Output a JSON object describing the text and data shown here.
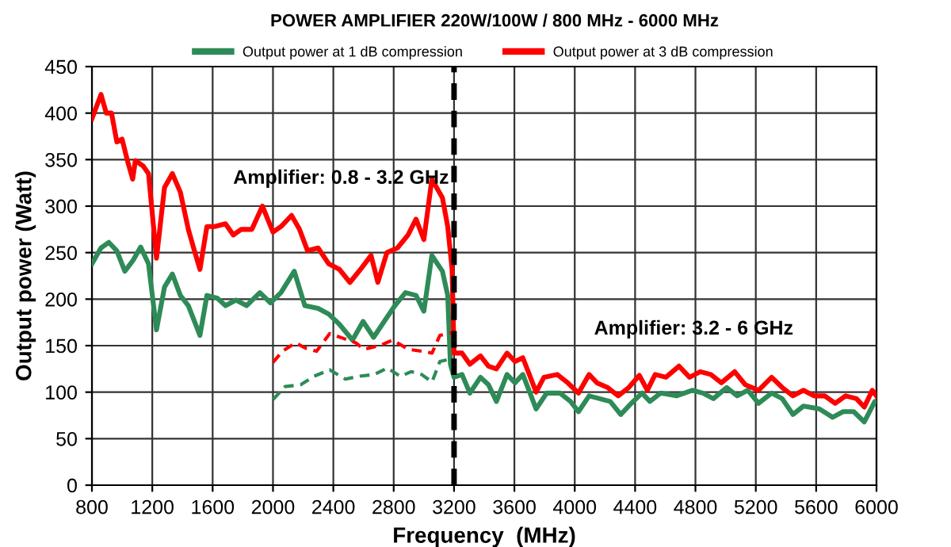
{
  "chart_data": {
    "type": "line",
    "title": "POWER AMPLIFIER 220W/100W / 800 MHz - 6000 MHz",
    "xlabel": "Frequency  (MHz)",
    "ylabel": "Output power (Watt)",
    "xlim": [
      800,
      6000
    ],
    "xticks": [
      800,
      1200,
      1600,
      2000,
      2400,
      2800,
      3200,
      3600,
      4000,
      4400,
      4800,
      5200,
      5600,
      6000
    ],
    "ylim": [
      0,
      450
    ],
    "yticks": [
      0,
      50,
      100,
      150,
      200,
      250,
      300,
      350,
      400,
      450
    ],
    "grid": true,
    "legend": "top",
    "marker": "none",
    "annotations": [
      "Amplifier: 0.8 - 3.2 GHz",
      "Amplifier: 3.2 - 6 GHz"
    ],
    "ref_lines": [
      {
        "axis": "x",
        "value": 3200,
        "label": null,
        "color": "#000000",
        "line_style": "dashed"
      }
    ],
    "series": [
      {
        "name": "Output power at 1 dB compression",
        "color": "#2e8b57",
        "line_style": "solid",
        "x": [
          800,
          860,
          912,
          965,
          1018,
          1070,
          1123,
          1175,
          1228,
          1281,
          1333,
          1386,
          1439,
          1516,
          1562,
          1632,
          1685,
          1755,
          1825,
          1913,
          1983,
          2053,
          2141,
          2211,
          2299,
          2369,
          2440,
          2527,
          2597,
          2667,
          2737,
          2808,
          2878,
          2948,
          3000,
          3053,
          3123,
          3158,
          3176,
          3200,
          3253,
          3305,
          3375,
          3428,
          3481,
          3551,
          3604,
          3656,
          3744,
          3814,
          3902,
          3972,
          4025,
          4095,
          4165,
          4235,
          4305,
          4375,
          4446,
          4498,
          4569,
          4674,
          4779,
          4849,
          4919,
          5007,
          5077,
          5147,
          5218,
          5305,
          5375,
          5446,
          5516,
          5621,
          5709,
          5779,
          5849,
          5919,
          5989,
          6000
        ],
        "values": [
          238,
          255,
          261,
          252,
          230,
          241,
          256,
          238,
          167,
          213,
          227,
          204,
          193,
          161,
          204,
          201,
          193,
          199,
          193,
          207,
          196,
          207,
          230,
          193,
          190,
          184,
          173,
          156,
          176,
          159,
          176,
          193,
          207,
          204,
          187,
          247,
          230,
          204,
          130,
          116,
          119,
          99,
          116,
          108,
          90,
          119,
          110,
          119,
          82,
          99,
          99,
          90,
          79,
          96,
          93,
          90,
          76,
          88,
          99,
          90,
          99,
          96,
          102,
          99,
          93,
          105,
          96,
          102,
          88,
          99,
          93,
          76,
          85,
          82,
          73,
          79,
          79,
          68,
          90,
          90
        ]
      },
      {
        "name": "Output power at 3 dB compression",
        "color": "#ff0000",
        "line_style": "solid",
        "x": [
          800,
          860,
          895,
          930,
          965,
          1000,
          1035,
          1070,
          1088,
          1140,
          1175,
          1228,
          1281,
          1333,
          1386,
          1439,
          1474,
          1516,
          1562,
          1614,
          1685,
          1737,
          1790,
          1860,
          1930,
          2000,
          2053,
          2123,
          2176,
          2229,
          2299,
          2369,
          2440,
          2510,
          2580,
          2650,
          2695,
          2755,
          2825,
          2895,
          2948,
          3000,
          3053,
          3123,
          3158,
          3187,
          3200,
          3253,
          3305,
          3375,
          3428,
          3481,
          3551,
          3604,
          3656,
          3744,
          3796,
          3884,
          3954,
          4025,
          4095,
          4147,
          4218,
          4288,
          4358,
          4428,
          4481,
          4533,
          4604,
          4691,
          4761,
          4832,
          4902,
          4972,
          5060,
          5130,
          5218,
          5305,
          5375,
          5446,
          5516,
          5586,
          5656,
          5726,
          5796,
          5867,
          5919,
          5972,
          6000
        ],
        "values": [
          394,
          420,
          400,
          400,
          369,
          372,
          349,
          329,
          349,
          343,
          335,
          244,
          320,
          335,
          315,
          275,
          255,
          232,
          278,
          278,
          281,
          269,
          275,
          275,
          300,
          272,
          278,
          290,
          275,
          252,
          255,
          238,
          232,
          218,
          232,
          247,
          218,
          250,
          255,
          269,
          286,
          264,
          329,
          309,
          278,
          232,
          142,
          142,
          130,
          139,
          128,
          125,
          142,
          133,
          137,
          100,
          116,
          119,
          110,
          99,
          119,
          110,
          105,
          96,
          105,
          118,
          102,
          119,
          116,
          128,
          116,
          122,
          119,
          110,
          122,
          108,
          102,
          116,
          105,
          96,
          102,
          96,
          96,
          88,
          96,
          93,
          84,
          102,
          96
        ]
      },
      {
        "color": "#ff0000",
        "line_style": "dashed",
        "x": [
          2000,
          2063,
          2150,
          2219,
          2289,
          2376,
          2463,
          2550,
          2602,
          2706,
          2793,
          2898,
          2985,
          3054,
          3106,
          3186
        ],
        "values": [
          132,
          144,
          153,
          147,
          144,
          163,
          158,
          153,
          146,
          150,
          156,
          146,
          144,
          142,
          161,
          164
        ]
      },
      {
        "color": "#2e8b57",
        "line_style": "dashed",
        "x": [
          2000,
          2080,
          2184,
          2271,
          2376,
          2480,
          2567,
          2671,
          2758,
          2845,
          2915,
          2985,
          3054,
          3106,
          3186
        ],
        "values": [
          92,
          106,
          108,
          117,
          124,
          114,
          117,
          119,
          126,
          117,
          122,
          119,
          111,
          133,
          136
        ]
      }
    ]
  }
}
